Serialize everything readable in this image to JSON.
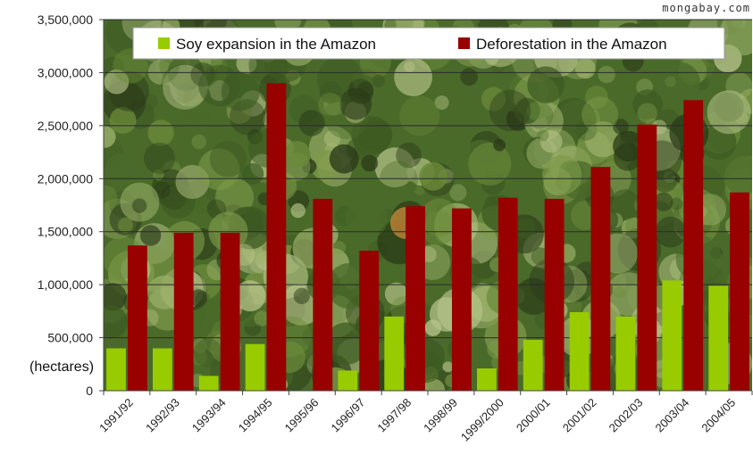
{
  "watermark": "mongabay.com",
  "colors": {
    "soy": "#99cc00",
    "deforestation": "#990000",
    "grid": "#2b2b2b",
    "forest_dark": "#2a3a18",
    "forest_mid": "#4a6a2a",
    "forest_light": "#7e9a4a"
  },
  "chart_data": {
    "type": "bar",
    "ylabel": "(hectares)",
    "ylim": [
      0,
      3500000
    ],
    "yticks": [
      "0",
      "500,000",
      "1,000,000",
      "1,500,000",
      "2,000,000",
      "2,500,000",
      "3,000,000",
      "3,500,000"
    ],
    "grid": true,
    "legend_position": "top",
    "categories": [
      "1991/92",
      "1992/93",
      "1993/94",
      "1994/95",
      "1995/96",
      "1996/97",
      "1997/98",
      "1998/99",
      "1999/2000",
      "2000/01",
      "2001/02",
      "2002/03",
      "2003/04",
      "2004/05"
    ],
    "series": [
      {
        "name": "Soy expansion in the Amazon",
        "values": [
          400000,
          400000,
          140000,
          440000,
          0,
          190000,
          700000,
          0,
          210000,
          480000,
          740000,
          700000,
          1040000,
          990000
        ]
      },
      {
        "name": "Deforestation in the Amazon",
        "values": [
          1370000,
          1490000,
          1490000,
          2900000,
          1810000,
          1320000,
          1740000,
          1720000,
          1820000,
          1810000,
          2110000,
          2510000,
          2740000,
          1870000
        ]
      }
    ]
  }
}
